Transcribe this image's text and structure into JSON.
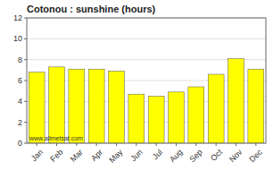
{
  "chart_data": {
    "type": "bar",
    "title": "Cotonou : sunshine (hours)",
    "categories": [
      "Jan",
      "Feb",
      "Mar",
      "Apr",
      "May",
      "Jun",
      "Jul",
      "Aug",
      "Sep",
      "Oct",
      "Nov",
      "Dec"
    ],
    "values": [
      6.8,
      7.3,
      7.1,
      7.1,
      6.9,
      4.7,
      4.5,
      4.9,
      5.4,
      6.6,
      8.1,
      7.1
    ],
    "color": "#ffff00",
    "ylim": [
      0,
      12
    ],
    "yticks": [
      0,
      2,
      4,
      6,
      8,
      10,
      12
    ],
    "grid": true,
    "annotation": "www.allmetsat.com"
  }
}
